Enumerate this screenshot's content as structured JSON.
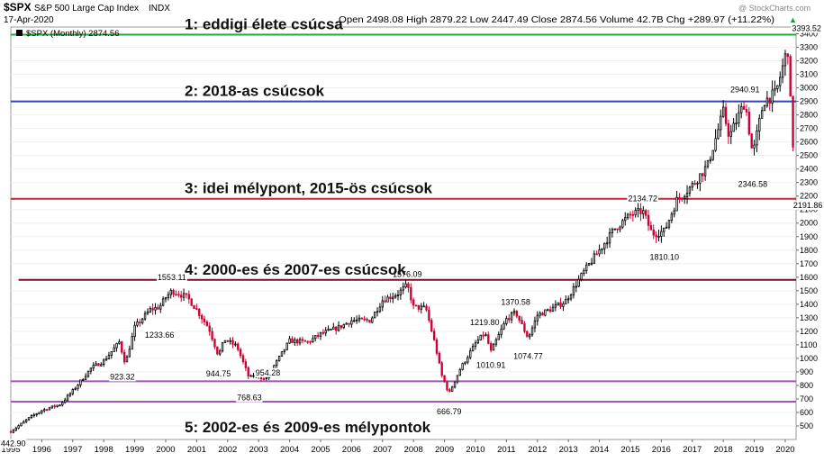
{
  "header": {
    "symbol": "$SPX",
    "name": "S&P 500 Large Cap Index",
    "exchange": "INDX",
    "date": "17-Apr-2020",
    "quote": "Open 2498.08  High 2879.22  Low 2447.49  Close 2874.56  Volume 42.7B  Chg +289.97 (+11.22%)",
    "quote_arrow": "▲",
    "watermark": "@ StockCharts.com",
    "legend": "$SPX (Monthly) 2874.56"
  },
  "colors": {
    "up": "#000000",
    "down": "#cc0033",
    "green_line": "#22aa44",
    "blue_line": "#3344bb",
    "red_line": "#cc2233",
    "maroon_line": "#7a0f1f",
    "purple_line": "#a055b8"
  },
  "chart_data": {
    "type": "candlestick",
    "interval": "monthly",
    "x_range": [
      "1995-01",
      "2020-04"
    ],
    "xticks": [
      "1995",
      "1996",
      "1997",
      "1998",
      "1999",
      "2000",
      "2001",
      "2002",
      "2003",
      "2004",
      "2005",
      "2006",
      "2007",
      "2008",
      "2009",
      "2010",
      "2011",
      "2012",
      "2013",
      "2014",
      "2015",
      "2016",
      "2017",
      "2018",
      "2019",
      "2020"
    ],
    "ylim": [
      400,
      3450
    ],
    "yticks": [
      "500",
      "600",
      "700",
      "800",
      "900",
      "1000",
      "1100",
      "1200",
      "1300",
      "1400",
      "1500",
      "1600",
      "1700",
      "1800",
      "1900",
      "2000",
      "2100",
      "2200",
      "2300",
      "2400",
      "2500",
      "2600",
      "2700",
      "2800",
      "2900",
      "3000",
      "3100",
      "3200",
      "3300",
      "3400"
    ],
    "anchors": [
      [
        1995.0,
        459
      ],
      [
        1995.6,
        560
      ],
      [
        1996.0,
        615
      ],
      [
        1996.6,
        660
      ],
      [
        1997.0,
        760
      ],
      [
        1997.6,
        930
      ],
      [
        1998.0,
        980
      ],
      [
        1998.5,
        1120
      ],
      [
        1998.7,
        960
      ],
      [
        1999.0,
        1230
      ],
      [
        1999.5,
        1360
      ],
      [
        1999.8,
        1380
      ],
      [
        2000.0,
        1450
      ],
      [
        2000.2,
        1500
      ],
      [
        2000.7,
        1450
      ],
      [
        2001.0,
        1360
      ],
      [
        2001.4,
        1220
      ],
      [
        2001.7,
        1020
      ],
      [
        2001.9,
        1140
      ],
      [
        2002.3,
        1090
      ],
      [
        2002.7,
        850
      ],
      [
        2002.9,
        890
      ],
      [
        2003.2,
        840
      ],
      [
        2003.6,
        980
      ],
      [
        2004.0,
        1130
      ],
      [
        2004.6,
        1120
      ],
      [
        2005.0,
        1180
      ],
      [
        2005.6,
        1230
      ],
      [
        2006.0,
        1280
      ],
      [
        2006.6,
        1280
      ],
      [
        2007.0,
        1430
      ],
      [
        2007.5,
        1480
      ],
      [
        2007.8,
        1540
      ],
      [
        2008.0,
        1380
      ],
      [
        2008.4,
        1370
      ],
      [
        2008.7,
        1100
      ],
      [
        2008.9,
        880
      ],
      [
        2009.15,
        740
      ],
      [
        2009.5,
        920
      ],
      [
        2010.0,
        1110
      ],
      [
        2010.3,
        1190
      ],
      [
        2010.5,
        1050
      ],
      [
        2011.0,
        1290
      ],
      [
        2011.3,
        1340
      ],
      [
        2011.7,
        1150
      ],
      [
        2012.0,
        1320
      ],
      [
        2012.4,
        1360
      ],
      [
        2012.9,
        1420
      ],
      [
        2013.5,
        1640
      ],
      [
        2014.0,
        1800
      ],
      [
        2014.5,
        1960
      ],
      [
        2015.0,
        2060
      ],
      [
        2015.4,
        2090
      ],
      [
        2015.7,
        1920
      ],
      [
        2016.1,
        1940
      ],
      [
        2016.5,
        2170
      ],
      [
        2017.0,
        2280
      ],
      [
        2017.5,
        2430
      ],
      [
        2018.0,
        2820
      ],
      [
        2018.2,
        2640
      ],
      [
        2018.7,
        2900
      ],
      [
        2018.95,
        2500
      ],
      [
        2019.3,
        2900
      ],
      [
        2019.7,
        2960
      ],
      [
        2020.0,
        3230
      ],
      [
        2020.1,
        3290
      ],
      [
        2020.2,
        2700
      ],
      [
        2020.25,
        2584
      ],
      [
        2020.3,
        2874
      ]
    ],
    "annotations": [
      {
        "label": "442.90",
        "x": 1995.05,
        "y": 442.9
      },
      {
        "label": "1553.11",
        "x": 2000.2,
        "y": 1553.11
      },
      {
        "label": "1233.66",
        "x": 1999.8,
        "y": 1233.66
      },
      {
        "label": "923.32",
        "x": 1998.6,
        "y": 923.32
      },
      {
        "label": "944.75",
        "x": 2001.7,
        "y": 944.75
      },
      {
        "label": "954.28",
        "x": 2003.3,
        "y": 954.28
      },
      {
        "label": "768.63",
        "x": 2002.7,
        "y": 768.63
      },
      {
        "label": "1576.09",
        "x": 2007.8,
        "y": 1576.09
      },
      {
        "label": "666.79",
        "x": 2009.15,
        "y": 666.79
      },
      {
        "label": "1219.80",
        "x": 2010.3,
        "y": 1219.8
      },
      {
        "label": "1010.91",
        "x": 2010.5,
        "y": 1010.91
      },
      {
        "label": "1370.58",
        "x": 2011.3,
        "y": 1370.58
      },
      {
        "label": "1074.77",
        "x": 2011.7,
        "y": 1074.77
      },
      {
        "label": "2134.72",
        "x": 2015.4,
        "y": 2134.72
      },
      {
        "label": "1810.10",
        "x": 2016.1,
        "y": 1810.1
      },
      {
        "label": "2940.91",
        "x": 2018.7,
        "y": 2940.91
      },
      {
        "label": "2346.58",
        "x": 2018.95,
        "y": 2346.58
      },
      {
        "label": "3393.52",
        "x": 2020.1,
        "y": 3393.52
      },
      {
        "label": "2191.86",
        "x": 2020.2,
        "y": 2191.86
      }
    ],
    "hlines": [
      {
        "name": "hline-alltime-high",
        "y": 3393.52,
        "label": "1: eddigi élete csúcsa",
        "color": "#22aa44"
      },
      {
        "name": "hline-2018-highs",
        "y": 2900,
        "label": "2: 2018-as csúcsok",
        "color": "#3344bb"
      },
      {
        "name": "hline-2015-highs",
        "y": 2180,
        "label": "3: idei mélypont, 2015-ös csúcsok",
        "color": "#cc2233"
      },
      {
        "name": "hline-2000-2007-highs",
        "y": 1580,
        "label": "4: 2000-es és 2007-es csúcsok",
        "color": "#7a0f1f"
      },
      {
        "name": "hline-2002-lows",
        "y": 830,
        "label": "",
        "color": "#a055b8"
      },
      {
        "name": "hline-2009-lows",
        "y": 680,
        "label": "5: 2002-es és 2009-es mélypontok",
        "color": "#a055b8"
      }
    ]
  }
}
